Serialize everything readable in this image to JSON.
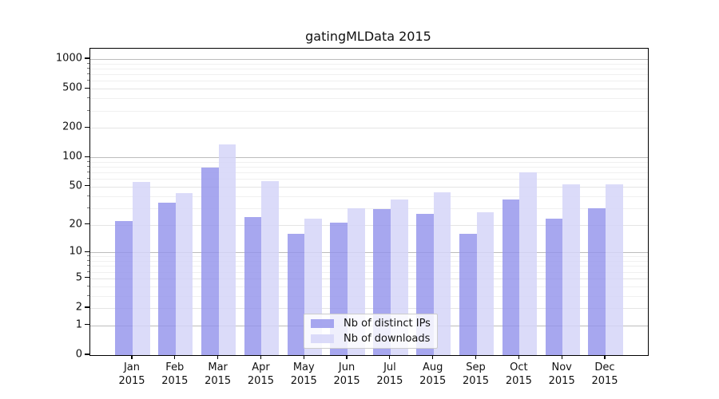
{
  "title": "gatingMLData 2015",
  "chart_data": {
    "type": "bar",
    "title": "gatingMLData 2015",
    "categories": [
      "Jan",
      "Feb",
      "Mar",
      "Apr",
      "May",
      "Jun",
      "Jul",
      "Aug",
      "Sep",
      "Oct",
      "Nov",
      "Dec"
    ],
    "x_year_label": "2015",
    "series": [
      {
        "name": "Nb of distinct IPs",
        "color": "rgba(148,148,235,0.82)",
        "values": [
          22,
          34,
          78,
          24,
          16,
          21,
          29,
          26,
          16,
          37,
          23,
          30
        ]
      },
      {
        "name": "Nb of downloads",
        "color": "rgba(213,213,248,0.85)",
        "values": [
          56,
          43,
          135,
          57,
          23,
          30,
          37,
          44,
          27,
          70,
          53,
          53
        ]
      }
    ],
    "y_axis": {
      "scale": "log1p",
      "tick_values": [
        0,
        1,
        2,
        5,
        10,
        20,
        50,
        100,
        200,
        500,
        1000
      ],
      "minor_tick_values": [
        3,
        4,
        6,
        7,
        8,
        9,
        30,
        40,
        60,
        70,
        80,
        90,
        300,
        400,
        600,
        700,
        800,
        900
      ],
      "ylim": [
        0,
        1270
      ]
    },
    "grid": true,
    "legend_position": "lower-center",
    "colors": {
      "grid_power_of_ten": "#bdbdbd",
      "grid_labeled": "#e4e4e4",
      "grid_minor": "#f0f0f0",
      "axis": "#000000"
    }
  }
}
